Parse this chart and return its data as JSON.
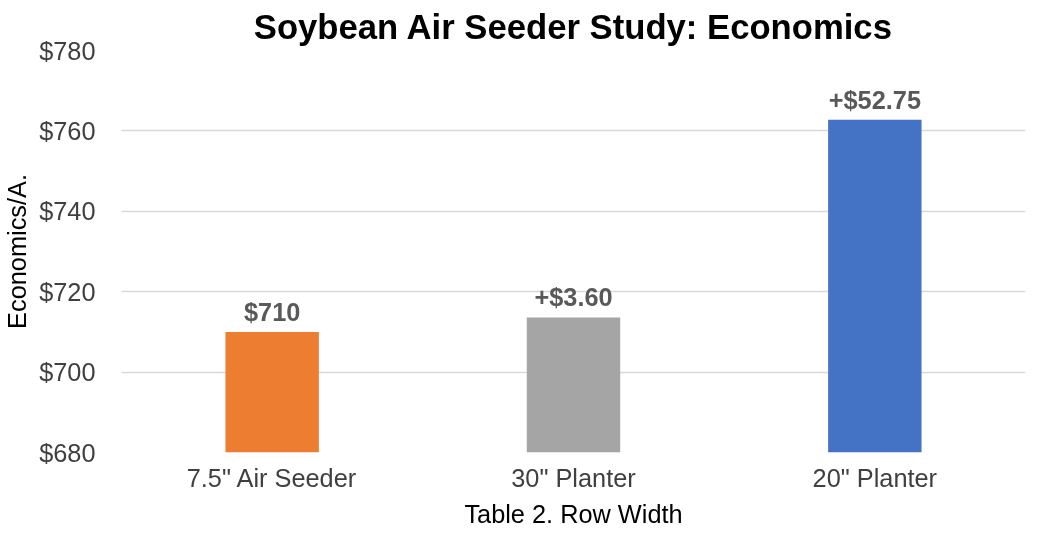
{
  "chart_data": {
    "type": "bar",
    "title": "Soybean Air Seeder Study: Economics",
    "xlabel": "Table 2. Row Width",
    "ylabel": "Economics/A.",
    "categories": [
      "7.5\" Air Seeder",
      "30\" Planter",
      "20\" Planter"
    ],
    "values": [
      710,
      713.6,
      762.75
    ],
    "colors": [
      "#ed7d31",
      "#a5a5a5",
      "#4472c4"
    ],
    "annotations": [
      {
        "text": "$710",
        "x": "7.5\" Air Seeder",
        "y": 710
      },
      {
        "text": "+$3.60",
        "x": "30\" Planter",
        "y": 713.6
      },
      {
        "text": "+$52.75",
        "x": "20\" Planter",
        "y": 762.75
      }
    ],
    "ylim": [
      680,
      780
    ],
    "yticks": [
      {
        "value": 680,
        "label": "$680"
      },
      {
        "value": 700,
        "label": "$700"
      },
      {
        "value": 720,
        "label": "$720"
      },
      {
        "value": 740,
        "label": "$740"
      },
      {
        "value": 760,
        "label": "$760"
      },
      {
        "value": 780,
        "label": "$780"
      }
    ],
    "grid": "y"
  }
}
